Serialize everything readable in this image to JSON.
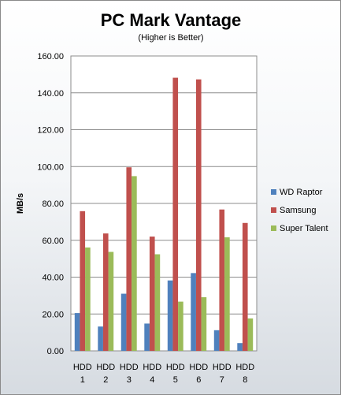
{
  "chart_data": {
    "type": "bar",
    "title": "PC Mark Vantage",
    "subtitle": "(Higher is Better)",
    "ylabel": "MB/s",
    "xlabel": "",
    "ylim": [
      0,
      160
    ],
    "y_ticks": [
      "0.00",
      "20.00",
      "40.00",
      "60.00",
      "80.00",
      "100.00",
      "120.00",
      "140.00",
      "160.00"
    ],
    "grid": true,
    "legend_position": "right",
    "categories": [
      {
        "top": "HDD",
        "bottom": "1"
      },
      {
        "top": "HDD",
        "bottom": "2"
      },
      {
        "top": "HDD",
        "bottom": "3"
      },
      {
        "top": "HDD",
        "bottom": "4"
      },
      {
        "top": "HDD",
        "bottom": "5"
      },
      {
        "top": "HDD",
        "bottom": "6"
      },
      {
        "top": "HDD",
        "bottom": "7"
      },
      {
        "top": "HDD",
        "bottom": "8"
      }
    ],
    "series": [
      {
        "name": "WD Raptor",
        "color": "#4F81BD",
        "values": [
          20.5,
          13.2,
          31.0,
          14.8,
          38.2,
          42.2,
          11.2,
          4.2
        ]
      },
      {
        "name": "Samsung",
        "color": "#C0504D",
        "values": [
          75.8,
          63.7,
          99.6,
          62.0,
          148.2,
          147.3,
          76.7,
          69.4
        ]
      },
      {
        "name": "Super Talent",
        "color": "#9BBB59",
        "values": [
          56.1,
          53.7,
          94.8,
          52.4,
          26.7,
          29.1,
          61.6,
          17.6
        ]
      }
    ],
    "plot_background": "#ffffff",
    "grid_color": "#8c8c8c"
  }
}
